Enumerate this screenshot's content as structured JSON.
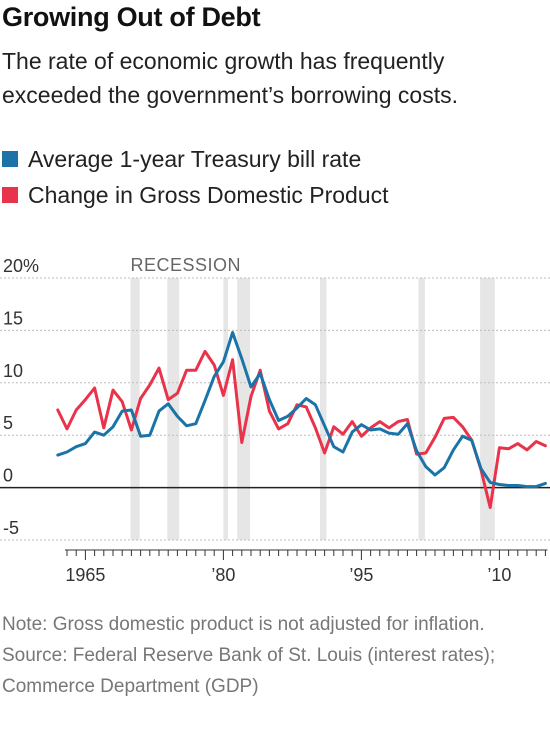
{
  "header": {
    "title": "Growing Out of Debt",
    "subtitle": "The rate of economic growth has frequently exceeded the government’s borrowing costs."
  },
  "footer": {
    "note": "Note: Gross domestic product is not adjusted for inflation.",
    "source": "Source: Federal Reserve Bank of St. Louis (interest rates); Commerce Department (GDP)"
  },
  "chart_data": {
    "type": "line",
    "xlim": [
      1960.5,
      2015.5
    ],
    "ylim": [
      -5,
      20
    ],
    "y_ticks": [
      20,
      15,
      10,
      5,
      0,
      -5
    ],
    "y_tick_labels": [
      "20%",
      "15",
      "10",
      "5",
      "0",
      "-5"
    ],
    "x_tick_labels": [
      {
        "x": 1965,
        "label": "1965"
      },
      {
        "x": 1980,
        "label": "’80"
      },
      {
        "x": 1995,
        "label": "’95"
      },
      {
        "x": 2010,
        "label": "’10"
      }
    ],
    "grid": true,
    "legend_position": "top-left",
    "recession_label": "RECESSION",
    "recessions": [
      [
        1969.9,
        1970.9
      ],
      [
        1973.9,
        1975.2
      ],
      [
        1980.0,
        1980.5
      ],
      [
        1981.5,
        1982.9
      ],
      [
        1990.5,
        1991.2
      ],
      [
        2001.2,
        2001.9
      ],
      [
        2007.9,
        2009.5
      ]
    ],
    "series": [
      {
        "name": "Average 1-year Treasury bill rate",
        "color": "#1a74a8",
        "x": [
          1962,
          1963,
          1964,
          1965,
          1966,
          1967,
          1968,
          1969,
          1970,
          1971,
          1972,
          1973,
          1974,
          1975,
          1976,
          1977,
          1978,
          1979,
          1980,
          1981,
          1982,
          1983,
          1984,
          1985,
          1986,
          1987,
          1988,
          1989,
          1990,
          1991,
          1992,
          1993,
          1994,
          1995,
          1996,
          1997,
          1998,
          1999,
          2000,
          2001,
          2002,
          2003,
          2004,
          2005,
          2006,
          2007,
          2008,
          2009,
          2010,
          2011,
          2012,
          2013,
          2014,
          2015
        ],
        "values": [
          3.1,
          3.4,
          3.9,
          4.2,
          5.3,
          5.0,
          5.8,
          7.3,
          7.4,
          4.9,
          5.0,
          7.3,
          8.0,
          6.8,
          5.9,
          6.1,
          8.3,
          10.6,
          12.0,
          14.8,
          12.3,
          9.6,
          10.9,
          8.4,
          6.4,
          6.8,
          7.6,
          8.5,
          7.9,
          5.9,
          3.9,
          3.4,
          5.3,
          6.0,
          5.5,
          5.6,
          5.2,
          5.1,
          6.1,
          3.5,
          2.0,
          1.2,
          1.9,
          3.6,
          4.9,
          4.5,
          1.8,
          0.5,
          0.3,
          0.2,
          0.2,
          0.1,
          0.1,
          0.4
        ]
      },
      {
        "name": "Change in Gross Domestic Product",
        "color": "#e8334a",
        "x": [
          1962,
          1963,
          1964,
          1965,
          1966,
          1967,
          1968,
          1969,
          1970,
          1971,
          1972,
          1973,
          1974,
          1975,
          1976,
          1977,
          1978,
          1979,
          1980,
          1981,
          1982,
          1983,
          1984,
          1985,
          1986,
          1987,
          1988,
          1989,
          1990,
          1991,
          1992,
          1993,
          1994,
          1995,
          1996,
          1997,
          1998,
          1999,
          2000,
          2001,
          2002,
          2003,
          2004,
          2005,
          2006,
          2007,
          2008,
          2009,
          2010,
          2011,
          2012,
          2013,
          2014,
          2015
        ],
        "values": [
          7.4,
          5.6,
          7.4,
          8.4,
          9.5,
          5.7,
          9.3,
          8.2,
          5.5,
          8.5,
          9.8,
          11.4,
          8.4,
          9.0,
          11.2,
          11.2,
          13.0,
          11.7,
          8.8,
          12.2,
          4.3,
          8.7,
          11.2,
          7.3,
          5.6,
          6.1,
          7.9,
          7.7,
          5.7,
          3.3,
          5.8,
          5.1,
          6.3,
          4.9,
          5.7,
          6.3,
          5.7,
          6.3,
          6.5,
          3.2,
          3.3,
          4.8,
          6.6,
          6.7,
          5.8,
          4.5,
          1.7,
          -1.9,
          3.8,
          3.7,
          4.2,
          3.6,
          4.4,
          4.0
        ]
      }
    ]
  }
}
